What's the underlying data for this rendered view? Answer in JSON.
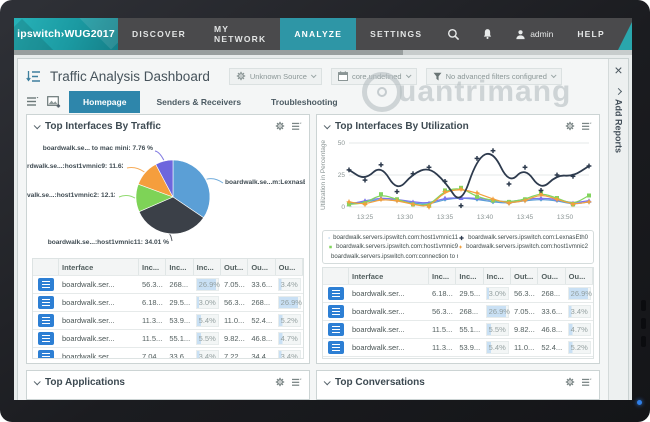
{
  "window": {
    "watermark": "uantrimang"
  },
  "nav": {
    "brand": {
      "name": "ipswitch",
      "sep": "›",
      "product": "WUG2017"
    },
    "items": [
      {
        "label": "DISCOVER",
        "active": false
      },
      {
        "label": "MY NETWORK",
        "active": false
      },
      {
        "label": "ANALYZE",
        "active": true
      },
      {
        "label": "SETTINGS",
        "active": false
      }
    ],
    "user": "admin",
    "help": "HELP"
  },
  "header": {
    "title": "Traffic Analysis Dashboard",
    "filters": [
      {
        "icon": "gears",
        "label": "Unknown Source"
      },
      {
        "icon": "calendar",
        "label": "core.undefined"
      },
      {
        "icon": "funnel",
        "label": "No advanced filters configured"
      }
    ],
    "close": "×"
  },
  "tabs": [
    {
      "label": "Homepage",
      "active": true
    },
    {
      "label": "Senders & Receivers",
      "active": false
    },
    {
      "label": "Troubleshooting",
      "active": false
    }
  ],
  "rail": {
    "label": "Add Reports"
  },
  "panels": {
    "traffic": {
      "title": "Top Interfaces By Traffic"
    },
    "utilization": {
      "title": "Top Interfaces By Utilization"
    },
    "applications": {
      "title": "Top Applications"
    },
    "conversations": {
      "title": "Top Conversations"
    }
  },
  "table_headers": [
    "",
    "Interface",
    "Inc...",
    "Inc...",
    "Inc...",
    "Out...",
    "Ou...",
    "Ou..."
  ],
  "tables": {
    "traffic": {
      "rows": [
        [
          "boardwalk.ser...",
          "56.3...",
          "268...",
          "26.9%",
          "7.05...",
          "33.6...",
          "3.4%"
        ],
        [
          "boardwalk.ser...",
          "6.18...",
          "29.5...",
          "3.0%",
          "56.3...",
          "268...",
          "26.9%"
        ],
        [
          "boardwalk.ser...",
          "11.3...",
          "53.9...",
          "5.4%",
          "11.0...",
          "52.4...",
          "5.2%"
        ],
        [
          "boardwalk.ser...",
          "11.5...",
          "55.1...",
          "5.5%",
          "9.82...",
          "46.8...",
          "4.7%"
        ],
        [
          "boardwalk.ser...",
          "7.04...",
          "33.6...",
          "3.4%",
          "7.22...",
          "34.4...",
          "3.4%"
        ]
      ]
    },
    "utilization": {
      "rows": [
        [
          "boardwalk.ser...",
          "6.18...",
          "29.5...",
          "3.0%",
          "56.3...",
          "268...",
          "26.9%"
        ],
        [
          "boardwalk.ser...",
          "56.3...",
          "268...",
          "26.9%",
          "7.05...",
          "33.6...",
          "3.4%"
        ],
        [
          "boardwalk.ser...",
          "11.5...",
          "55.1...",
          "5.5%",
          "9.82...",
          "46.8...",
          "4.7%"
        ],
        [
          "boardwalk.ser...",
          "11.3...",
          "53.9...",
          "5.4%",
          "11.0...",
          "52.4...",
          "5.2%"
        ],
        [
          "boardwalk.ser...",
          "7.04...",
          "33.6...",
          "3.4%",
          "7.22...",
          "34.4...",
          "3.4%"
        ]
      ]
    }
  },
  "chart_data": [
    {
      "type": "pie",
      "title": "Top Interfaces By Traffic",
      "slices": [
        {
          "label": "boardwalk.se...m:LexnasEth0:",
          "value": 34.47,
          "color": "#5b9fd6"
        },
        {
          "label": "boardwalk.se...:host1vmnic11: 34.01 %",
          "value": 34.01,
          "color": "#3b4048"
        },
        {
          "label": "valk.se...:host1vmnic2: 12.13 %",
          "value": 12.13,
          "color": "#7ed357"
        },
        {
          "label": "rdwalk.se...:host1vmnic9: 11.63 %",
          "value": 11.63,
          "color": "#f59e3d"
        },
        {
          "label": "boardwalk.se... to mac mini: 7.76 %",
          "value": 7.76,
          "color": "#6e66dd"
        }
      ]
    },
    {
      "type": "line",
      "title": "Top Interfaces By Utilization",
      "ylabel": "Utilization in Percentage",
      "ylim": [
        0,
        50
      ],
      "yticks": [
        0,
        25,
        50
      ],
      "x_start_min": 23,
      "x_end_min": 53,
      "x_step_min": 2,
      "xticks": [
        "13:25",
        "13:30",
        "13:35",
        "13:40",
        "13:45",
        "13:50"
      ],
      "xtick_minutes": [
        25,
        30,
        35,
        40,
        45,
        50
      ],
      "grid": true,
      "legend_position": "bottom",
      "series": [
        {
          "name": "boardwalk.servers.ipswitch.com:host1vmnic11",
          "marker": "diamond",
          "color": "#5b9fd6",
          "values": [
            3,
            4,
            6,
            5,
            3,
            2,
            6,
            7,
            6,
            4,
            3,
            5,
            6,
            5,
            2,
            4
          ]
        },
        {
          "name": "boardwalk.servers.ipswitch.com:LexnasEth0",
          "marker": "plus",
          "color": "#2d3a4d",
          "values": [
            29,
            21,
            33,
            12,
            26,
            31,
            20,
            1,
            38,
            44,
            18,
            31,
            13,
            25,
            24,
            32
          ]
        },
        {
          "name": "boardwalk.servers.ipswitch.com:host1vmnic9",
          "marker": "square",
          "color": "#82d55e",
          "values": [
            2,
            3,
            10,
            6,
            2,
            1,
            13,
            15,
            8,
            5,
            4,
            6,
            11,
            7,
            2,
            9
          ]
        },
        {
          "name": "boardwalk.servers.ipswitch.com:host1vmnic2",
          "marker": "star",
          "color": "#f2a03d",
          "values": [
            4,
            2,
            6,
            5,
            2,
            0,
            12,
            14,
            11,
            6,
            3,
            5,
            10,
            6,
            2,
            4
          ]
        },
        {
          "name": "boardwalk.servers.ipswitch.com:connection to mac mini",
          "marker": "triangle",
          "color": "#7b74ee",
          "values": [
            2,
            5,
            7,
            6,
            4,
            3,
            7,
            7,
            7,
            5,
            4,
            6,
            7,
            6,
            3,
            5
          ]
        }
      ]
    }
  ]
}
